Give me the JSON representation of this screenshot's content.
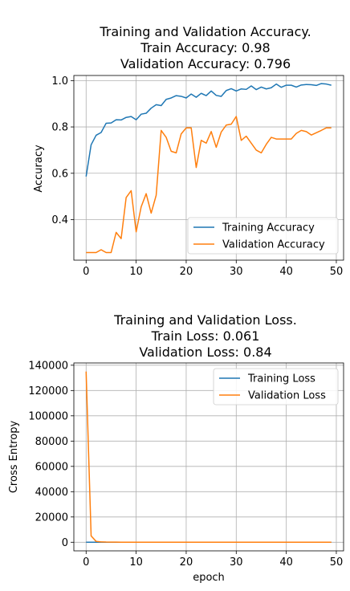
{
  "chart_data": [
    {
      "type": "line",
      "title_lines": [
        "Training and Validation Accuracy.",
        "Train Accuracy: 0.98",
        "Validation Accuracy: 0.796"
      ],
      "xlabel": "",
      "ylabel": "Accuracy",
      "xlim": [
        -2.45,
        51.45
      ],
      "ylim": [
        0.225,
        1.022
      ],
      "xticks": [
        0,
        10,
        20,
        30,
        40,
        50
      ],
      "yticks": [
        0.4,
        0.6,
        0.8,
        1.0
      ],
      "ytick_labels": [
        "0.4",
        "0.6",
        "0.8",
        "1.0"
      ],
      "grid": true,
      "legend_position": "lower right",
      "x": [
        0,
        1,
        2,
        3,
        4,
        5,
        6,
        7,
        8,
        9,
        10,
        11,
        12,
        13,
        14,
        15,
        16,
        17,
        18,
        19,
        20,
        21,
        22,
        23,
        24,
        25,
        26,
        27,
        28,
        29,
        30,
        31,
        32,
        33,
        34,
        35,
        36,
        37,
        38,
        39,
        40,
        41,
        42,
        43,
        44,
        45,
        46,
        47,
        48,
        49
      ],
      "series": [
        {
          "name": "Training Accuracy",
          "color": "#1f77b4",
          "values": [
            0.586,
            0.723,
            0.764,
            0.776,
            0.816,
            0.817,
            0.831,
            0.83,
            0.841,
            0.845,
            0.831,
            0.855,
            0.859,
            0.881,
            0.896,
            0.892,
            0.919,
            0.925,
            0.935,
            0.932,
            0.925,
            0.942,
            0.928,
            0.945,
            0.935,
            0.955,
            0.936,
            0.932,
            0.957,
            0.965,
            0.955,
            0.964,
            0.962,
            0.977,
            0.961,
            0.972,
            0.964,
            0.969,
            0.985,
            0.971,
            0.98,
            0.98,
            0.972,
            0.981,
            0.983,
            0.982,
            0.979,
            0.987,
            0.985,
            0.98
          ]
        },
        {
          "name": "Validation Accuracy",
          "color": "#ff7f0e",
          "values": [
            0.258,
            0.258,
            0.258,
            0.27,
            0.258,
            0.258,
            0.345,
            0.318,
            0.495,
            0.525,
            0.347,
            0.455,
            0.512,
            0.428,
            0.505,
            0.785,
            0.755,
            0.695,
            0.688,
            0.77,
            0.796,
            0.796,
            0.625,
            0.742,
            0.73,
            0.78,
            0.712,
            0.778,
            0.808,
            0.812,
            0.845,
            0.742,
            0.76,
            0.73,
            0.7,
            0.688,
            0.725,
            0.755,
            0.748,
            0.748,
            0.748,
            0.748,
            0.772,
            0.785,
            0.78,
            0.765,
            0.775,
            0.785,
            0.796,
            0.796
          ]
        }
      ]
    },
    {
      "type": "line",
      "title_lines": [
        "Training and Validation Loss.",
        "Train Loss: 0.061",
        "Validation Loss: 0.84"
      ],
      "xlabel": "epoch",
      "ylabel": "Cross Entropy",
      "xlim": [
        -2.45,
        51.45
      ],
      "ylim": [
        -6800,
        141800
      ],
      "xticks": [
        0,
        10,
        20,
        30,
        40,
        50
      ],
      "yticks": [
        0,
        20000,
        40000,
        60000,
        80000,
        100000,
        120000,
        140000
      ],
      "ytick_labels": [
        "0",
        "20000",
        "40000",
        "60000",
        "80000",
        "100000",
        "120000",
        "140000"
      ],
      "grid": true,
      "legend_position": "upper right",
      "x": [
        0,
        1,
        2,
        3,
        4,
        5,
        6,
        7,
        8,
        9,
        10,
        11,
        12,
        13,
        14,
        15,
        16,
        17,
        18,
        19,
        20,
        21,
        22,
        23,
        24,
        25,
        26,
        27,
        28,
        29,
        30,
        31,
        32,
        33,
        34,
        35,
        36,
        37,
        38,
        39,
        40,
        41,
        42,
        43,
        44,
        45,
        46,
        47,
        48,
        49
      ],
      "series": [
        {
          "name": "Training Loss",
          "color": "#1f77b4",
          "values": [
            1.05,
            0.68,
            0.58,
            0.55,
            0.48,
            0.46,
            0.44,
            0.43,
            0.41,
            0.4,
            0.42,
            0.38,
            0.37,
            0.33,
            0.3,
            0.3,
            0.25,
            0.23,
            0.21,
            0.21,
            0.22,
            0.18,
            0.21,
            0.17,
            0.19,
            0.14,
            0.19,
            0.19,
            0.13,
            0.11,
            0.13,
            0.11,
            0.12,
            0.08,
            0.12,
            0.09,
            0.11,
            0.1,
            0.06,
            0.09,
            0.07,
            0.07,
            0.08,
            0.06,
            0.06,
            0.06,
            0.07,
            0.05,
            0.05,
            0.061
          ]
        },
        {
          "name": "Validation Loss",
          "color": "#ff7f0e",
          "values": [
            135000,
            5000,
            700,
            300,
            150,
            100,
            80,
            60,
            40,
            30,
            20,
            15,
            10,
            8,
            6,
            5,
            4,
            3,
            3,
            2,
            2,
            2,
            2,
            1.5,
            1.5,
            1.5,
            1.2,
            1.2,
            1.1,
            1.0,
            1.0,
            1.0,
            1.0,
            0.95,
            0.95,
            0.9,
            0.9,
            0.9,
            0.9,
            0.9,
            0.88,
            0.88,
            0.86,
            0.86,
            0.85,
            0.85,
            0.84,
            0.84,
            0.84,
            0.84
          ]
        }
      ]
    }
  ]
}
